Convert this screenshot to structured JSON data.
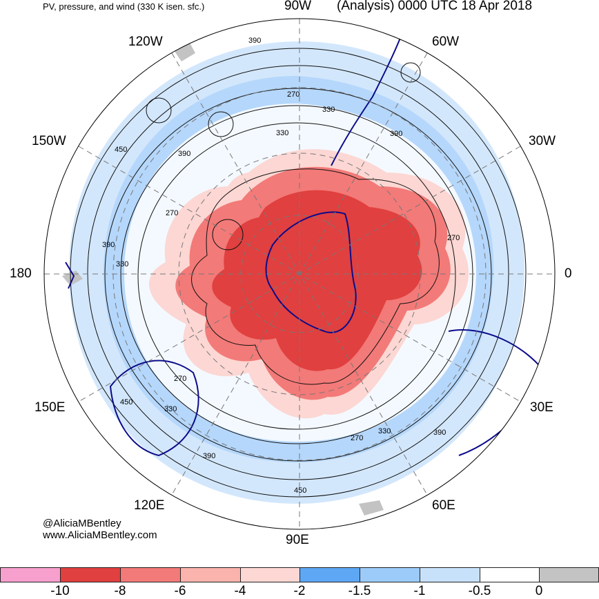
{
  "title_left": "PV, pressure, and wind (330 K isen. sfc.)",
  "title_right": "(Analysis) 0000 UTC 18 Apr 2018",
  "longitude_labels": {
    "top": "90W",
    "top_right": "60W",
    "right_upper": "30W",
    "right": "0",
    "right_lower": "30E",
    "bottom_right": "60E",
    "bottom": "90E",
    "bottom_left": "120E",
    "left_lower": "150E",
    "left": "180",
    "left_upper": "150W",
    "top_left": "120W"
  },
  "contour_labels": [
    "390",
    "270",
    "330",
    "390",
    "450",
    "390",
    "270",
    "390",
    "330",
    "270",
    "330",
    "450",
    "270",
    "330",
    "390",
    "450",
    "390",
    "330",
    "270"
  ],
  "credits": {
    "handle": "@AliciaMBentley",
    "website": "www.AliciaMBentley.com"
  },
  "colorbar": {
    "colors": [
      "#f79fcd",
      "#e0403f",
      "#f27a78",
      "#fab4ad",
      "#fcd7d3",
      "#5ea7f5",
      "#9ccbfa",
      "#c8e1fb",
      "#ffffff",
      "#c3c3c3"
    ],
    "tick_labels": [
      "-10",
      "-8",
      "-6",
      "-4",
      "-2",
      "-1.5",
      "-1",
      "-0.5",
      "0"
    ]
  },
  "colors": {
    "contour": "#111111",
    "coastline": "#0b0b8a",
    "grid": "#777777"
  }
}
